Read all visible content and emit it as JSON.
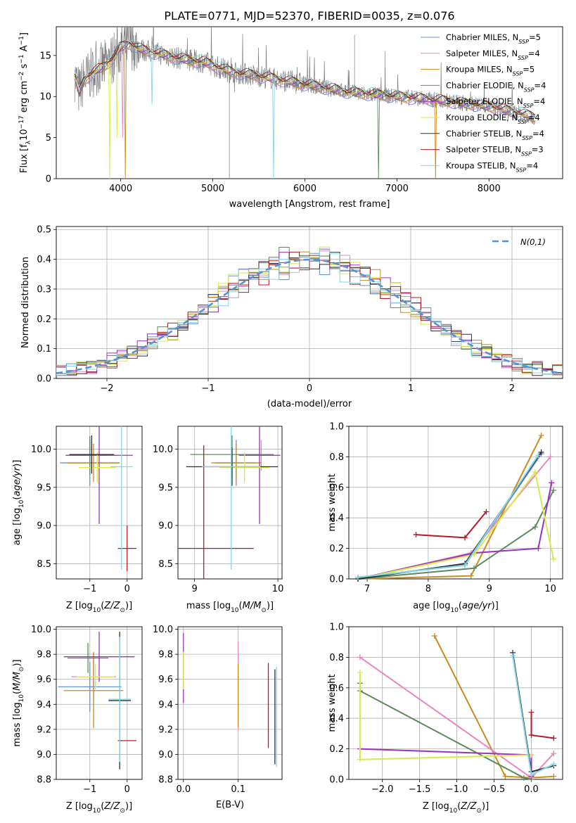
{
  "figure": {
    "title": "PLATE=0771, MJD=52370, FIBERID=0035, z=0.076"
  },
  "series_colors": {
    "Chabrier MILES": "#6a8fd8",
    "Salpeter MILES": "#e986bf",
    "Kroupa MILES": "#c98a1f",
    "Chabrier ELODIE": "#5c8a5c",
    "Salpeter ELODIE": "#9b30c0",
    "Kroupa ELODIE": "#d8ea4a",
    "Chabrier STELIB": "#2f2f2f",
    "Salpeter STELIB": "#b01d24",
    "Kroupa STELIB": "#84d6e6",
    "data": "#7f7f7f",
    "normal": "#5b8fd6",
    "orange": "#d97b30",
    "teal": "#72c7c7"
  },
  "chart_data": [
    {
      "id": "spectrum",
      "type": "line",
      "title": "PLATE=0771, MJD=52370, FIBERID=0035, z=0.076",
      "xlabel": "wavelength [Angstrom, rest frame]",
      "ylabel": "Flux [f_λ 10^-17 erg cm^-2 s^-1 A^-1]",
      "xlim": [
        3300,
        8800
      ],
      "ylim": [
        0,
        18.5
      ],
      "xticks": [
        4000,
        5000,
        6000,
        7000,
        8000
      ],
      "yticks": [
        0,
        5,
        10,
        15
      ],
      "legend": "upper right",
      "continuum": {
        "x": [
          3500,
          3550,
          3600,
          3700,
          3800,
          3900,
          4000,
          4100,
          4200,
          4300,
          4500,
          4700,
          4900,
          5000,
          5200,
          5500,
          6000,
          6500,
          7000,
          7500,
          8000,
          8500
        ],
        "y": [
          12.5,
          10.5,
          12.0,
          13.0,
          13.5,
          14.5,
          16.0,
          16.5,
          15.8,
          15.5,
          15.0,
          14.5,
          14.2,
          13.8,
          13.0,
          12.5,
          11.5,
          10.5,
          10.0,
          9.5,
          8.8,
          7.5
        ]
      },
      "series": [
        {
          "name": "Chabrier MILES",
          "nssp": "5"
        },
        {
          "name": "Salpeter MILES",
          "nssp": "4"
        },
        {
          "name": "Kroupa MILES",
          "nssp": "5"
        },
        {
          "name": "Chabrier ELODIE",
          "nssp": "4"
        },
        {
          "name": "Salpeter ELODIE",
          "nssp": "4"
        },
        {
          "name": "Kroupa ELODIE",
          "nssp": "4"
        },
        {
          "name": "Chabrier STELIB",
          "nssp": "4"
        },
        {
          "name": "Salpeter STELIB",
          "nssp": "3"
        },
        {
          "name": "Kroupa STELIB",
          "nssp": "4"
        }
      ]
    },
    {
      "id": "residuals",
      "type": "line",
      "xlabel": "(data-model)/error",
      "ylabel": "Normed distribution",
      "xlim": [
        -2.5,
        2.5
      ],
      "ylim": [
        0,
        0.51
      ],
      "xticks": [
        -2,
        -1,
        0,
        1,
        2
      ],
      "yticks": [
        0.0,
        0.1,
        0.2,
        0.3,
        0.4,
        0.5
      ],
      "grid": true,
      "legend": "upper right",
      "normal_label": "N(0,1)"
    },
    {
      "id": "age_vs_Z",
      "type": "scatter",
      "xlabel": "Z [log10(Z/Z⊙)]",
      "ylabel": "age [log10(age/yr)]",
      "xlim": [
        -1.9,
        0.4
      ],
      "ylim": [
        8.3,
        10.3
      ],
      "xticks": [
        -1,
        0
      ],
      "yticks": [
        8.5,
        9.0,
        9.5,
        10.0
      ],
      "grid": true,
      "points": [
        {
          "series": "Chabrier MILES",
          "x": -1.0,
          "y": 9.82,
          "xerr": 0.8,
          "yerr": 0.3
        },
        {
          "series": "Salpeter MILES",
          "x": -0.95,
          "y": 9.92,
          "xerr": 0.7,
          "yerr": 0.2
        },
        {
          "series": "Kroupa MILES",
          "x": -0.9,
          "y": 9.82,
          "xerr": 0.7,
          "yerr": 0.25
        },
        {
          "series": "Chabrier ELODIE",
          "x": -1.0,
          "y": 9.92,
          "xerr": 0.5,
          "yerr": 0.25
        },
        {
          "series": "Salpeter ELODIE",
          "x": -0.75,
          "y": 9.92,
          "xerr": 0.9,
          "yerr": 0.9
        },
        {
          "series": "Kroupa ELODIE",
          "x": -0.8,
          "y": 9.76,
          "xerr": 0.5,
          "yerr": 0.2
        },
        {
          "series": "Chabrier STELIB",
          "x": -0.95,
          "y": 9.93,
          "xerr": 0.6,
          "yerr": 0.25
        },
        {
          "series": "Salpeter STELIB",
          "x": 0.0,
          "y": 8.7,
          "xerr": 0.25,
          "yerr": 0.3
        },
        {
          "series": "Kroupa STELIB",
          "x": -0.15,
          "y": 9.77,
          "xerr": 0.3,
          "yerr": 1.35
        }
      ]
    },
    {
      "id": "age_vs_mass",
      "type": "scatter",
      "xlabel": "mass [log10(M/M⊙)]",
      "ylabel": "",
      "xlim": [
        8.8,
        10.05
      ],
      "ylim": [
        8.3,
        10.3
      ],
      "xticks": [
        9,
        10
      ],
      "yticks": [
        8.5,
        9.0,
        9.5,
        10.0
      ],
      "grid": true,
      "points": [
        {
          "series": "Chabrier MILES",
          "x": 9.5,
          "y": 9.82,
          "xerr": 0.25,
          "yerr": 0.3
        },
        {
          "series": "Salpeter MILES",
          "x": 9.8,
          "y": 9.92,
          "xerr": 0.2,
          "yerr": 0.2
        },
        {
          "series": "Kroupa MILES",
          "x": 9.5,
          "y": 9.82,
          "xerr": 0.3,
          "yerr": 0.25
        },
        {
          "series": "Chabrier ELODIE",
          "x": 9.45,
          "y": 9.93,
          "xerr": 0.5,
          "yerr": 0.25
        },
        {
          "series": "Salpeter ELODIE",
          "x": 9.78,
          "y": 9.92,
          "xerr": 0.25,
          "yerr": 0.9
        },
        {
          "series": "Kroupa ELODIE",
          "x": 9.6,
          "y": 9.76,
          "xerr": 0.3,
          "yerr": 0.2
        },
        {
          "series": "Chabrier STELIB",
          "x": 9.45,
          "y": 9.77,
          "xerr": 0.55,
          "yerr": 0.25
        },
        {
          "series": "Salpeter STELIB",
          "x": 9.11,
          "y": 8.7,
          "xerr": 0.6,
          "yerr": 1.35
        },
        {
          "series": "Kroupa STELIB",
          "x": 9.44,
          "y": 9.77,
          "xerr": 0.35,
          "yerr": 1.35
        }
      ]
    },
    {
      "id": "weight_vs_age",
      "type": "line",
      "xlabel": "age [log10(age/yr)]",
      "ylabel": "mass weight",
      "xlim": [
        6.7,
        10.2
      ],
      "ylim": [
        0,
        1.0
      ],
      "xticks": [
        7,
        8,
        9,
        10
      ],
      "yticks": [
        0.0,
        0.2,
        0.4,
        0.6,
        0.8,
        1.0
      ],
      "grid": true,
      "series": [
        {
          "name": "Chabrier MILES",
          "x": [
            6.85,
            8.6,
            9.85
          ],
          "y": [
            0.01,
            0.09,
            0.82
          ]
        },
        {
          "name": "Salpeter MILES",
          "x": [
            6.85,
            8.7,
            10.0
          ],
          "y": [
            0.0,
            0.17,
            0.8
          ]
        },
        {
          "name": "Kroupa MILES",
          "x": [
            6.85,
            8.7,
            9.85
          ],
          "y": [
            0.0,
            0.02,
            0.94
          ]
        },
        {
          "name": "Chabrier ELODIE",
          "x": [
            6.85,
            8.75,
            9.75,
            10.05
          ],
          "y": [
            0.0,
            0.07,
            0.34,
            0.58
          ]
        },
        {
          "name": "Salpeter ELODIE",
          "x": [
            6.85,
            8.75,
            9.8,
            10.02
          ],
          "y": [
            0.0,
            0.17,
            0.2,
            0.63
          ]
        },
        {
          "name": "Kroupa ELODIE",
          "x": [
            6.85,
            8.75,
            9.75,
            10.05
          ],
          "y": [
            0.0,
            0.16,
            0.7,
            0.13
          ]
        },
        {
          "name": "Chabrier STELIB",
          "x": [
            6.85,
            8.6,
            9.85
          ],
          "y": [
            0.0,
            0.1,
            0.83
          ]
        },
        {
          "name": "Salpeter STELIB",
          "x": [
            7.8,
            8.6,
            8.95
          ],
          "y": [
            0.29,
            0.27,
            0.44
          ]
        },
        {
          "name": "Kroupa STELIB",
          "x": [
            6.85,
            8.6,
            9.8
          ],
          "y": [
            0.01,
            0.09,
            0.81
          ]
        }
      ]
    },
    {
      "id": "mass_vs_Z",
      "type": "scatter",
      "xlabel": "Z [log10(Z/Z⊙)]",
      "ylabel": "mass [log10(M/M⊙)]",
      "xlim": [
        -1.9,
        0.4
      ],
      "ylim": [
        8.8,
        10.02
      ],
      "xticks": [
        -1,
        0
      ],
      "yticks": [
        8.8,
        9.0,
        9.2,
        9.4,
        9.6,
        9.8,
        10.0
      ],
      "grid": true,
      "points": [
        {
          "series": "Chabrier MILES",
          "x": -1.0,
          "y": 9.54,
          "xerr": 0.85,
          "yerr": 0.2
        },
        {
          "series": "Salpeter MILES",
          "x": -0.9,
          "y": 9.62,
          "xerr": 0.6,
          "yerr": 0.2
        },
        {
          "series": "Kroupa MILES",
          "x": -0.9,
          "y": 9.51,
          "xerr": 0.8,
          "yerr": 0.3
        },
        {
          "series": "Chabrier ELODIE",
          "x": -1.05,
          "y": 9.77,
          "xerr": 0.55,
          "yerr": 0.12
        },
        {
          "series": "Salpeter ELODIE",
          "x": -0.75,
          "y": 9.78,
          "xerr": 0.95,
          "yerr": 0.2
        },
        {
          "series": "Kroupa ELODIE",
          "x": -0.85,
          "y": 9.62,
          "xerr": 0.5,
          "yerr": 0.1
        },
        {
          "series": "Chabrier STELIB",
          "x": -0.2,
          "y": 9.43,
          "xerr": 0.3,
          "yerr": 0.55
        },
        {
          "series": "Salpeter STELIB",
          "x": 0.0,
          "y": 9.11,
          "xerr": 0.25,
          "yerr": 0.0
        },
        {
          "series": "Kroupa STELIB",
          "x": -0.2,
          "y": 9.44,
          "xerr": 0.3,
          "yerr": 0.5
        }
      ]
    },
    {
      "id": "mass_vs_ebv",
      "type": "scatter",
      "xlabel": "E(B-V)",
      "ylabel": "",
      "xlim": [
        -0.01,
        0.18
      ],
      "ylim": [
        8.8,
        10.02
      ],
      "xticks": [
        0.0,
        0.1
      ],
      "xtick_labels": [
        "0.0",
        "0.1"
      ],
      "yticks": [
        8.8,
        9.0,
        9.2,
        9.4,
        9.6,
        9.8,
        10.0
      ],
      "grid": true,
      "points": [
        {
          "series": "Salpeter ELODIE",
          "x": 0.0,
          "y": 9.69,
          "xerr": 0.0,
          "yerr": 0.28
        },
        {
          "series": "Kroupa ELODIE",
          "x": 0.0,
          "y": 9.67,
          "xerr": 0.0,
          "yerr": 0.15
        },
        {
          "series": "Salpeter MILES",
          "x": 0.1,
          "y": 9.55,
          "xerr": 0.0,
          "yerr": 0.35
        },
        {
          "series": "Kroupa MILES",
          "x": 0.1,
          "y": 9.47,
          "xerr": 0.0,
          "yerr": 0.25
        },
        {
          "series": "Salpeter STELIB",
          "x": 0.155,
          "y": 9.39,
          "xerr": 0.0,
          "yerr": 0.34
        },
        {
          "series": "Kroupa STELIB",
          "x": 0.17,
          "y": 9.3,
          "xerr": 0.0,
          "yerr": 0.4
        },
        {
          "series": "Chabrier STELIB",
          "x": 0.167,
          "y": 9.3,
          "xerr": 0.0,
          "yerr": 0.38
        }
      ]
    },
    {
      "id": "weight_vs_Z",
      "type": "line",
      "xlabel": "Z [log10(Z/Z⊙)]",
      "ylabel": "mass weight",
      "xlim": [
        -2.45,
        0.42
      ],
      "ylim": [
        0,
        1.0
      ],
      "xticks": [
        -2.0,
        -1.5,
        -1.0,
        -0.5,
        0.0
      ],
      "xtick_labels": [
        "−2.0",
        "−1.5",
        "−1.0",
        "−0.5",
        "0.0"
      ],
      "yticks": [
        0.0,
        0.2,
        0.4,
        0.6,
        0.8,
        1.0
      ],
      "grid": true,
      "series": [
        {
          "name": "Kroupa MILES",
          "x": [
            -1.3,
            -0.35,
            0.0,
            0.3
          ],
          "y": [
            0.94,
            0.02,
            0.01,
            0.02
          ]
        },
        {
          "name": "Salpeter MILES",
          "x": [
            -2.3,
            0.0,
            0.3
          ],
          "y": [
            0.8,
            0.01,
            0.17
          ]
        },
        {
          "name": "Chabrier ELODIE",
          "x": [
            -2.3,
            -2.3,
            -0.1,
            0.0
          ],
          "y": [
            0.63,
            0.58,
            0.01,
            0.0
          ]
        },
        {
          "name": "Salpeter ELODIE",
          "x": [
            -2.3,
            0.0,
            0.0
          ],
          "y": [
            0.2,
            0.16,
            0.02
          ]
        },
        {
          "name": "Kroupa ELODIE",
          "x": [
            -2.3,
            -2.3,
            0.0
          ],
          "y": [
            0.7,
            0.13,
            0.16
          ]
        },
        {
          "name": "Chabrier STELIB",
          "x": [
            -0.25,
            0.0,
            0.3
          ],
          "y": [
            0.83,
            0.05,
            0.09
          ]
        },
        {
          "name": "Salpeter STELIB",
          "x": [
            0.0,
            0.0,
            0.3
          ],
          "y": [
            0.44,
            0.29,
            0.27
          ]
        },
        {
          "name": "Kroupa STELIB",
          "x": [
            -0.25,
            0.0,
            0.3
          ],
          "y": [
            0.81,
            0.03,
            0.1
          ]
        }
      ]
    }
  ]
}
